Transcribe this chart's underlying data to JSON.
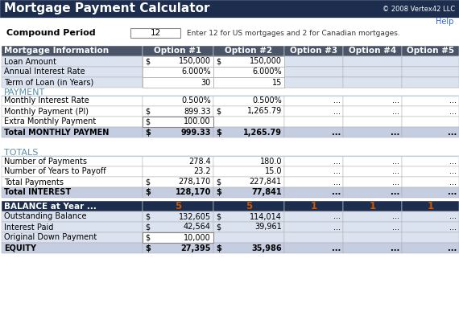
{
  "title": "Mortgage Payment Calculator",
  "copyright": "© 2008 Vertex42 LLC",
  "help_text": "Help",
  "header_bg": "#1c2d4e",
  "header_fg": "#ffffff",
  "compound_label": "Compound Period",
  "compound_value": "12",
  "compound_note": "Enter 12 for US mortgages and 2 for Canadian mortgages.",
  "section_colors": {
    "mortgage_header_bg": "#4a5568",
    "mortgage_header_fg": "#ffffff",
    "row_light": "#dce3f0",
    "row_white": "#ffffff",
    "total_row_bg": "#c5cde0",
    "section_label_fg": "#5b8fa8",
    "balance_header_bg": "#1c2d4e"
  },
  "columns": [
    "Mortgage Information",
    "Option #1",
    "Option #2",
    "Option #3",
    "Option #4",
    "Option #5"
  ],
  "mortgage_rows": [
    [
      "Loan Amount",
      "$",
      "150,000",
      "$",
      "150,000",
      "",
      "",
      "",
      "",
      ""
    ],
    [
      "Annual Interest Rate",
      "",
      "6.000%",
      "",
      "6.000%",
      "",
      "",
      "",
      "",
      ""
    ],
    [
      "Term of Loan (in Years)",
      "",
      "30",
      "",
      "15",
      "",
      "",
      "",
      "",
      ""
    ]
  ],
  "payment_section_label": "PAYMENT",
  "payment_rows": [
    [
      "Monthly Interest Rate",
      "",
      "0.500%",
      "",
      "0.500%",
      "...",
      "...",
      "..."
    ],
    [
      "Monthly Payment (PI)",
      "$",
      "899.33",
      "$",
      "1,265.79",
      "...",
      "...",
      "..."
    ],
    [
      "Extra Monthly Payment",
      "$",
      "100.00",
      "",
      "",
      "",
      "",
      ""
    ],
    [
      "Total MONTHLY PAYMEN",
      "$",
      "999.33",
      "$",
      "1,265.79",
      "...",
      "...",
      "..."
    ]
  ],
  "totals_section_label": "TOTALS",
  "totals_rows": [
    [
      "Number of Payments",
      "",
      "278.4",
      "",
      "180.0",
      "...",
      "...",
      "..."
    ],
    [
      "Number of Years to Payoff",
      "",
      "23.2",
      "",
      "15.0",
      "...",
      "...",
      "..."
    ],
    [
      "Total Payments",
      "$",
      "278,170",
      "$",
      "227,841",
      "...",
      "...",
      "..."
    ],
    [
      "Total INTEREST",
      "$",
      "128,170",
      "$",
      "77,841",
      "...",
      "...",
      "..."
    ]
  ],
  "balance_section_label": "BALANCE at Year ...",
  "balance_year_values": [
    "5",
    "5",
    "1",
    "1",
    "1"
  ],
  "balance_rows": [
    [
      "Outstanding Balance",
      "$",
      "132,605",
      "$",
      "114,014",
      "...",
      "...",
      "..."
    ],
    [
      "Interest Paid",
      "$",
      "42,564",
      "$",
      "39,961",
      "...",
      "...",
      "..."
    ],
    [
      "Original Down Payment",
      "$",
      "10,000",
      "",
      "",
      "",
      "",
      ""
    ],
    [
      "EQUITY",
      "$",
      "27,395",
      "$",
      "35,986",
      "...",
      "...",
      "..."
    ]
  ]
}
